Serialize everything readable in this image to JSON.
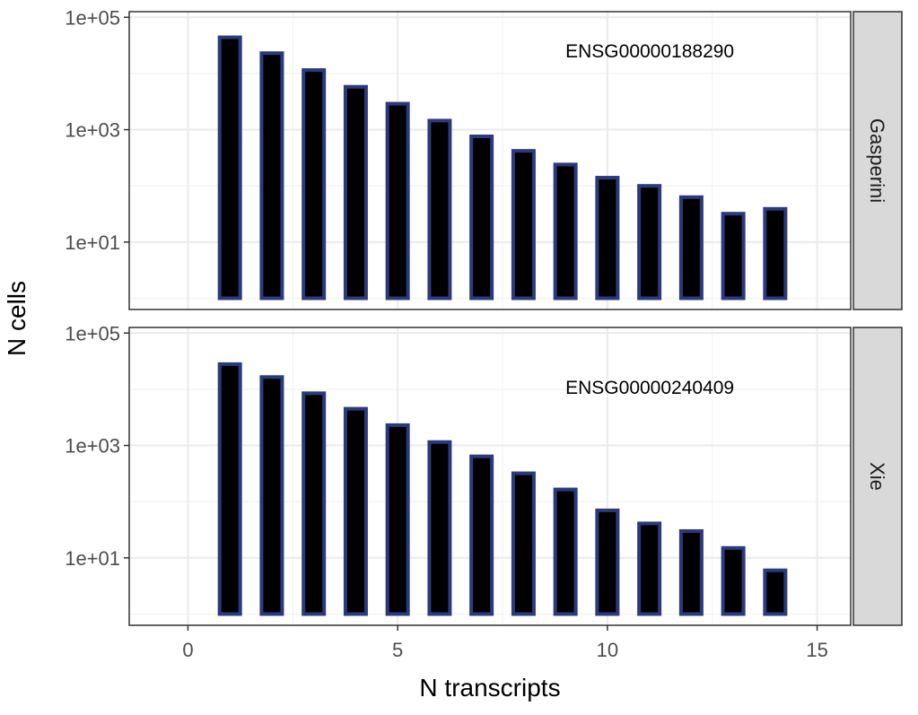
{
  "chart_data": {
    "type": "bar",
    "xlabel": "N transcripts",
    "ylabel": "N cells",
    "x_scale": "linear",
    "y_scale": "log10",
    "xlim": [
      -1.4,
      15.8
    ],
    "x_ticks": [
      0,
      5,
      10,
      15
    ],
    "y_ticks": [
      10,
      1000,
      100000
    ],
    "y_tick_labels": [
      "1e+01",
      "1e+03",
      "1e+05"
    ],
    "grid": true,
    "bar_fill": "#000000",
    "bar_outline": "#2b3a7e",
    "strip_fill": "#d9d9d9",
    "panels": [
      {
        "strip_label": "Gasperini",
        "annotation": "ENSG00000188290",
        "annotation_x": 9,
        "ylim_log10": [
          -0.2,
          5.1
        ],
        "bar_base": 1,
        "x": [
          1,
          2,
          3,
          4,
          5,
          6,
          7,
          8,
          9,
          10,
          11,
          12,
          13,
          14
        ],
        "values": [
          44000,
          23000,
          11500,
          5800,
          2900,
          1450,
          760,
          420,
          240,
          140,
          100,
          63,
          32,
          39
        ]
      },
      {
        "strip_label": "Xie",
        "annotation": "ENSG00000240409",
        "annotation_x": 9,
        "ylim_log10": [
          -0.2,
          5.1
        ],
        "bar_base": 1,
        "x": [
          1,
          2,
          3,
          4,
          5,
          6,
          7,
          8,
          9,
          10,
          11,
          12,
          13,
          14
        ],
        "values": [
          28000,
          16500,
          8500,
          4500,
          2300,
          1150,
          640,
          320,
          165,
          70,
          41,
          30,
          15,
          6
        ]
      }
    ]
  }
}
